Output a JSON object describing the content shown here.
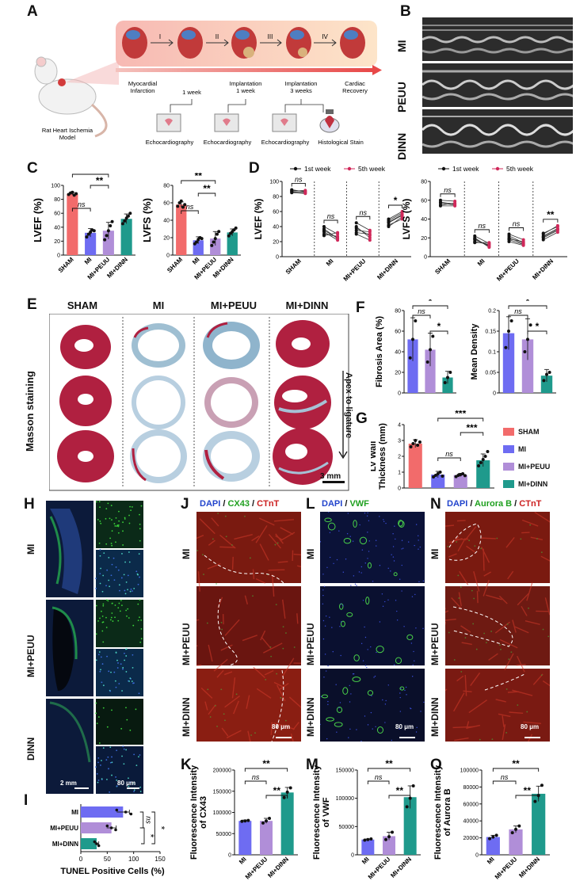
{
  "panels": {
    "A": "A",
    "B": "B",
    "C": "C",
    "D": "D",
    "E": "E",
    "F": "F",
    "G": "G",
    "H": "H",
    "I": "I",
    "J": "J",
    "K": "K",
    "L": "L",
    "M": "M",
    "N": "N",
    "O": "O"
  },
  "colors": {
    "sham": "#f26b6b",
    "mi": "#6e6cf2",
    "peuu": "#b08ed8",
    "dinn": "#1f9a8c",
    "first_week": "#111111",
    "fifth_week": "#d0285a",
    "tissue_red": "#b02040",
    "tissue_blue": "#8fb4cc",
    "fluor_red": "#b52a1a",
    "fluor_green": "#3fc63f",
    "fluor_blue": "#2a3aa0"
  },
  "panel_a": {
    "stages": [
      "I",
      "II",
      "III",
      "IV"
    ],
    "timeline": [
      "Myocardial Infarction",
      "1 week",
      "Implantation 1 week",
      "Implantation 3 weeks",
      "Cardiac Recovery"
    ],
    "procedures": [
      "Echocardiography",
      "Echocardiography",
      "Echocardiography",
      "Histological Stain"
    ],
    "model_label": "Rat Heart Ischemia Model"
  },
  "panel_b": {
    "rows": [
      "MI",
      "PEUU",
      "DINN"
    ]
  },
  "panel_e": {
    "columns": [
      "SHAM",
      "MI",
      "MI+PEUU",
      "MI+DINN"
    ],
    "row_label": "Masson staining",
    "side_label": "Apex to ligature",
    "scale": "3 mm"
  },
  "panel_h": {
    "rows": [
      "MI",
      "MI+PEUU",
      "DINN"
    ],
    "scale_left": "2 mm",
    "scale_right": "80 μm"
  },
  "panel_j": {
    "title_parts": [
      "DAPI",
      " / ",
      "CX43",
      " / ",
      "CTnT"
    ],
    "rows": [
      "MI",
      "MI+PEUU",
      "MI+DINN"
    ],
    "scale": "80 μm"
  },
  "panel_l": {
    "title_parts": [
      "DAPI",
      " / ",
      "VWF"
    ],
    "rows": [
      "MI",
      "MI+PEUU",
      "MI+DINN"
    ],
    "scale": "80 μm"
  },
  "panel_n": {
    "title_parts": [
      "DAPI",
      " / ",
      "Aurora B",
      " / ",
      "CTnT"
    ],
    "rows": [
      "MI",
      "MI+PEUU",
      "MI+DINN"
    ],
    "scale": "80 μm"
  },
  "legend_g": [
    "SHAM",
    "MI",
    "MI+PEUU",
    "MI+DINN"
  ],
  "chart_data": [
    {
      "id": "C1",
      "type": "bar",
      "categories": [
        "SHAM",
        "MI",
        "MI+PEUU",
        "MI+DINN"
      ],
      "values": [
        88,
        32,
        35,
        52
      ],
      "errors": [
        2,
        6,
        12,
        7
      ],
      "ylabel": "LVEF (%)",
      "ylim": [
        0,
        100
      ],
      "yticks": [
        0,
        20,
        40,
        60,
        80,
        100
      ],
      "points": [
        [
          87,
          89,
          90,
          86,
          88
        ],
        [
          26,
          30,
          33,
          36,
          35
        ],
        [
          22,
          28,
          35,
          42,
          48
        ],
        [
          45,
          49,
          53,
          56,
          60
        ]
      ],
      "significance": [
        {
          "from": 2,
          "to": 3,
          "label": "**"
        },
        {
          "from": 1,
          "to": 2,
          "label": "ns"
        },
        {
          "from": 1,
          "to": 3,
          "label": "**"
        }
      ]
    },
    {
      "id": "C2",
      "type": "bar",
      "categories": [
        "SHAM",
        "MI",
        "MI+PEUU",
        "MI+DINN"
      ],
      "values": [
        58,
        17,
        19,
        26
      ],
      "errors": [
        3,
        4,
        8,
        4
      ],
      "ylabel": "LVFS (%)",
      "ylim": [
        0,
        80
      ],
      "yticks": [
        0,
        20,
        40,
        60,
        80
      ],
      "points": [
        [
          56,
          60,
          62,
          55,
          58
        ],
        [
          13,
          15,
          18,
          20,
          19
        ],
        [
          11,
          15,
          19,
          24,
          27
        ],
        [
          22,
          25,
          27,
          29,
          31
        ]
      ],
      "significance": [
        {
          "from": 1,
          "to": 2,
          "label": "ns"
        },
        {
          "from": 2,
          "to": 3,
          "label": "**"
        },
        {
          "from": 1,
          "to": 3,
          "label": "**"
        }
      ]
    },
    {
      "id": "D1",
      "type": "line",
      "ylabel": "LVEF (%)",
      "ylim": [
        0,
        100
      ],
      "yticks": [
        0,
        20,
        40,
        60,
        80,
        100
      ],
      "legend": [
        "1st week",
        "5th week"
      ],
      "groups": [
        {
          "name": "SHAM",
          "week1": [
            86,
            88,
            87,
            89,
            85
          ],
          "week5": [
            85,
            87,
            88,
            86,
            84
          ],
          "sig": "ns"
        },
        {
          "name": "MI",
          "week1": [
            40,
            35,
            30,
            33,
            28,
            37
          ],
          "week5": [
            30,
            25,
            27,
            22,
            32,
            24
          ],
          "sig": "ns"
        },
        {
          "name": "MI+PEUU",
          "week1": [
            45,
            38,
            32,
            40,
            30,
            35
          ],
          "week5": [
            35,
            28,
            30,
            25,
            22,
            33
          ],
          "sig": "ns"
        },
        {
          "name": "MI+DINN",
          "week1": [
            45,
            42,
            48,
            40,
            46,
            50
          ],
          "week5": [
            55,
            50,
            58,
            53,
            56,
            60
          ],
          "sig": "*"
        }
      ]
    },
    {
      "id": "D2",
      "type": "line",
      "ylabel": "LVFS (%)",
      "ylim": [
        0,
        80
      ],
      "yticks": [
        0,
        20,
        40,
        60,
        80
      ],
      "legend": [
        "1st week",
        "5th week"
      ],
      "groups": [
        {
          "name": "SHAM",
          "week1": [
            58,
            55,
            60,
            57,
            54
          ],
          "week5": [
            56,
            57,
            59,
            55,
            54
          ],
          "sig": "ns"
        },
        {
          "name": "MI",
          "week1": [
            22,
            18,
            16,
            20,
            15,
            19
          ],
          "week5": [
            14,
            12,
            13,
            10,
            15,
            11
          ],
          "sig": "ns"
        },
        {
          "name": "MI+PEUU",
          "week1": [
            24,
            20,
            18,
            22,
            16,
            19
          ],
          "week5": [
            18,
            14,
            13,
            15,
            12,
            16
          ],
          "sig": "ns"
        },
        {
          "name": "MI+DINN",
          "week1": [
            22,
            20,
            24,
            18,
            25,
            21
          ],
          "week5": [
            30,
            28,
            33,
            26,
            32,
            29
          ],
          "sig": "**"
        }
      ]
    },
    {
      "id": "F1",
      "type": "bar",
      "categories": [
        "MI",
        "MI+PEUU",
        "MI+DINN"
      ],
      "values": [
        52,
        42,
        15
      ],
      "errors": [
        21,
        16,
        6
      ],
      "ylabel": "Fibrosis Area (%)",
      "ylim": [
        0,
        80
      ],
      "yticks": [
        0,
        20,
        40,
        60,
        80
      ],
      "points": [
        [
          34,
          52,
          70
        ],
        [
          30,
          42,
          55
        ],
        [
          10,
          15,
          20
        ]
      ],
      "significance": [
        {
          "from": 1,
          "to": 2,
          "label": "ns"
        },
        {
          "from": 2,
          "to": 3,
          "label": "*"
        },
        {
          "from": 1,
          "to": 3,
          "label": "*"
        }
      ]
    },
    {
      "id": "F2",
      "type": "bar",
      "categories": [
        "MI",
        "MI+PEUU",
        "MI+DINN"
      ],
      "values": [
        0.145,
        0.13,
        0.042
      ],
      "errors": [
        0.04,
        0.05,
        0.015
      ],
      "ylabel": "Mean Density",
      "ylim": [
        0,
        0.2
      ],
      "yticks": [
        0,
        0.05,
        0.1,
        0.15,
        0.2
      ],
      "points": [
        [
          0.11,
          0.15,
          0.175
        ],
        [
          0.1,
          0.13,
          0.165
        ],
        [
          0.03,
          0.045,
          0.05
        ]
      ],
      "significance": [
        {
          "from": 1,
          "to": 2,
          "label": "ns"
        },
        {
          "from": 2,
          "to": 3,
          "label": "*"
        },
        {
          "from": 1,
          "to": 3,
          "label": "*"
        }
      ]
    },
    {
      "id": "G",
      "type": "bar",
      "categories": [
        "SHAM",
        "MI",
        "MI+PEUU",
        "MI+DINN"
      ],
      "values": [
        2.8,
        0.85,
        0.82,
        1.75
      ],
      "errors": [
        0.25,
        0.2,
        0.1,
        0.4
      ],
      "ylabel": "LV Wall Thickness (mm)",
      "ylim": [
        0,
        4
      ],
      "yticks": [
        0,
        1,
        2,
        3,
        4
      ],
      "points": [
        [
          2.6,
          2.8,
          3.0,
          2.7,
          2.9
        ],
        [
          0.7,
          0.8,
          0.9,
          1.0,
          0.75
        ],
        [
          0.72,
          0.8,
          0.85,
          0.9,
          0.78
        ],
        [
          1.4,
          1.6,
          1.8,
          2.0,
          2.3
        ]
      ],
      "significance": [
        {
          "from": 2,
          "to": 3,
          "label": "ns"
        },
        {
          "from": 3,
          "to": 4,
          "label": "***"
        },
        {
          "from": 2,
          "to": 4,
          "label": "***"
        }
      ]
    },
    {
      "id": "I",
      "type": "bar",
      "orientation": "horizontal",
      "categories": [
        "MI",
        "MI+PEUU",
        "MI+DINN"
      ],
      "values": [
        80,
        58,
        30
      ],
      "errors": [
        12,
        9,
        4
      ],
      "xlabel": "TUNEL Positive Cells (%)",
      "xlim": [
        0,
        150
      ],
      "xticks": [
        0,
        50,
        100,
        150
      ],
      "points": [
        [
          68,
          85,
          95
        ],
        [
          50,
          58,
          66
        ],
        [
          26,
          30,
          34
        ]
      ],
      "significance": [
        {
          "from": 1,
          "to": 2,
          "label": "ns"
        },
        {
          "from": 2,
          "to": 3,
          "label": "*"
        },
        {
          "from": 1,
          "to": 3,
          "label": "*"
        }
      ]
    },
    {
      "id": "K",
      "type": "bar",
      "categories": [
        "MI",
        "MI+PEUU",
        "MI+DINN"
      ],
      "values": [
        80000,
        80000,
        147000
      ],
      "errors": [
        2000,
        6000,
        12000
      ],
      "ylabel": "Fluorescence Intensity of CX43",
      "ylim": [
        0,
        200000
      ],
      "yticks": [
        0,
        50000,
        100000,
        150000,
        200000
      ],
      "points": [
        [
          79000,
          80000,
          81000
        ],
        [
          75000,
          80000,
          86000
        ],
        [
          135000,
          148000,
          158000
        ]
      ],
      "significance": [
        {
          "from": 1,
          "to": 2,
          "label": "ns"
        },
        {
          "from": 2,
          "to": 3,
          "label": "**"
        },
        {
          "from": 1,
          "to": 3,
          "label": "**"
        }
      ]
    },
    {
      "id": "M",
      "type": "bar",
      "categories": [
        "MI",
        "MI+PEUU",
        "MI+DINN"
      ],
      "values": [
        27000,
        33000,
        102000
      ],
      "errors": [
        1000,
        7000,
        20000
      ],
      "ylabel": "Fluorescence Intensity of VWF",
      "ylim": [
        0,
        150000
      ],
      "yticks": [
        0,
        50000,
        100000,
        150000
      ],
      "points": [
        [
          26000,
          27000,
          28000
        ],
        [
          27000,
          32000,
          40000
        ],
        [
          85000,
          100000,
          122000
        ]
      ],
      "significance": [
        {
          "from": 1,
          "to": 2,
          "label": "ns"
        },
        {
          "from": 2,
          "to": 3,
          "label": "**"
        },
        {
          "from": 1,
          "to": 3,
          "label": "**"
        }
      ]
    },
    {
      "id": "O",
      "type": "bar",
      "categories": [
        "MI",
        "MI+PEUU",
        "MI+DINN"
      ],
      "values": [
        21000,
        30000,
        72000
      ],
      "errors": [
        2000,
        4000,
        9000
      ],
      "ylabel": "Fluorescence Intensity of Aurora B",
      "ylim": [
        0,
        100000
      ],
      "yticks": [
        0,
        20000,
        40000,
        60000,
        80000,
        100000
      ],
      "points": [
        [
          19000,
          21000,
          23000
        ],
        [
          26000,
          30000,
          34000
        ],
        [
          63000,
          70000,
          82000
        ]
      ],
      "significance": [
        {
          "from": 1,
          "to": 2,
          "label": "ns"
        },
        {
          "from": 2,
          "to": 3,
          "label": "**"
        },
        {
          "from": 1,
          "to": 3,
          "label": "**"
        }
      ]
    }
  ]
}
